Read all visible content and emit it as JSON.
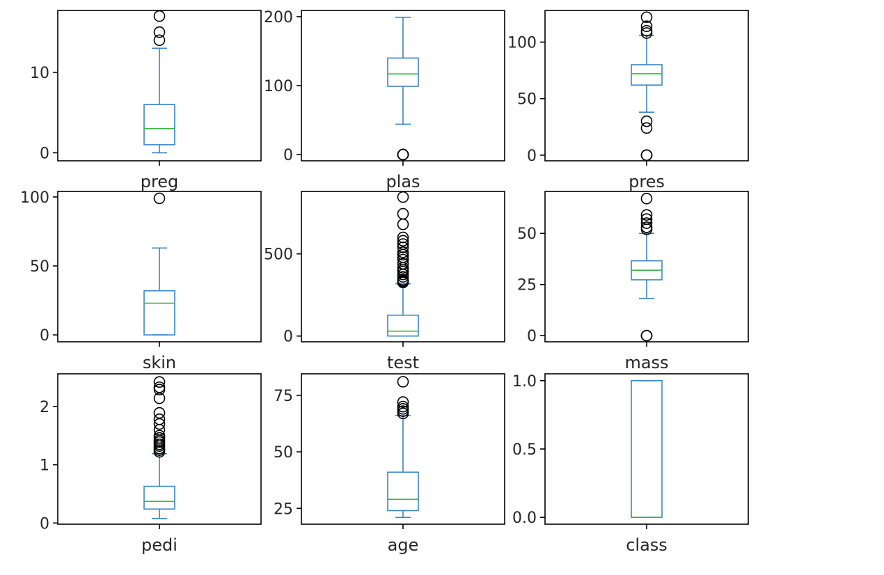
{
  "chart_data": {
    "type": "box",
    "layout": "3x3 grid of box plots",
    "colors": {
      "box": "#3a85c6",
      "median": "#3eb34a",
      "flier": "#000000"
    },
    "panels": [
      {
        "label": "preg",
        "ylim": [
          -1,
          17.7
        ],
        "yticks": [
          0,
          10
        ],
        "tick_labels": [
          "0",
          "10"
        ],
        "whisker_low": 0,
        "q1": 1,
        "median": 3,
        "q3": 6,
        "whisker_high": 13,
        "outliers": [
          14,
          15,
          17
        ]
      },
      {
        "label": "plas",
        "ylim": [
          -9,
          209
        ],
        "yticks": [
          0,
          100,
          200
        ],
        "tick_labels": [
          "0",
          "100",
          "200"
        ],
        "whisker_low": 44,
        "q1": 99,
        "median": 117,
        "q3": 140,
        "whisker_high": 199,
        "outliers": [
          0,
          0,
          0,
          0,
          0
        ]
      },
      {
        "label": "pres",
        "ylim": [
          -5,
          128
        ],
        "yticks": [
          0,
          50,
          100
        ],
        "tick_labels": [
          "0",
          "50",
          "100"
        ],
        "whisker_low": 38,
        "q1": 62,
        "median": 72,
        "q3": 80,
        "whisker_high": 106,
        "outliers": [
          0,
          0,
          0,
          24,
          30,
          108,
          110,
          114,
          122
        ]
      },
      {
        "label": "skin",
        "ylim": [
          -5,
          104
        ],
        "yticks": [
          0,
          50,
          100
        ],
        "tick_labels": [
          "0",
          "50",
          "100"
        ],
        "whisker_low": 0,
        "q1": 0,
        "median": 23,
        "q3": 32,
        "whisker_high": 63,
        "outliers": [
          99
        ]
      },
      {
        "label": "test",
        "ylim": [
          -35,
          880
        ],
        "yticks": [
          0,
          500
        ],
        "tick_labels": [
          "0",
          "500"
        ],
        "whisker_low": 0,
        "q1": 0,
        "median": 30,
        "q3": 127,
        "whisker_high": 318,
        "outliers": [
          326,
          330,
          335,
          342,
          360,
          375,
          392,
          402,
          415,
          440,
          465,
          480,
          495,
          510,
          540,
          560,
          580,
          600,
          680,
          744,
          846
        ]
      },
      {
        "label": "mass",
        "ylim": [
          -3,
          70.5
        ],
        "yticks": [
          0,
          25,
          50
        ],
        "tick_labels": [
          "0",
          "25",
          "50"
        ],
        "whisker_low": 18.2,
        "q1": 27.3,
        "median": 32,
        "q3": 36.6,
        "whisker_high": 50,
        "outliers": [
          0,
          0,
          0,
          52,
          53,
          55,
          57,
          59,
          67
        ]
      },
      {
        "label": "pedi",
        "ylim": [
          -0.02,
          2.56
        ],
        "yticks": [
          0,
          1,
          2
        ],
        "tick_labels": [
          "0",
          "1",
          "2"
        ],
        "whisker_low": 0.078,
        "q1": 0.24,
        "median": 0.37,
        "q3": 0.63,
        "whisker_high": 1.19,
        "outliers": [
          1.22,
          1.25,
          1.28,
          1.32,
          1.35,
          1.39,
          1.42,
          1.46,
          1.5,
          1.6,
          1.7,
          1.78,
          1.89,
          2.14,
          2.29,
          2.33,
          2.42
        ]
      },
      {
        "label": "age",
        "ylim": [
          18,
          84.5
        ],
        "yticks": [
          25,
          50,
          75
        ],
        "tick_labels": [
          "25",
          "50",
          "75"
        ],
        "whisker_low": 21,
        "q1": 24,
        "median": 29,
        "q3": 41,
        "whisker_high": 66,
        "outliers": [
          67,
          68,
          69,
          70,
          72,
          81
        ]
      },
      {
        "label": "class",
        "ylim": [
          -0.05,
          1.05
        ],
        "yticks": [
          0,
          0.5,
          1
        ],
        "tick_labels": [
          "0.0",
          "0.5",
          "1.0"
        ],
        "whisker_low": 0,
        "q1": 0,
        "median": 0,
        "q3": 1,
        "whisker_high": 1,
        "outliers": []
      }
    ]
  }
}
